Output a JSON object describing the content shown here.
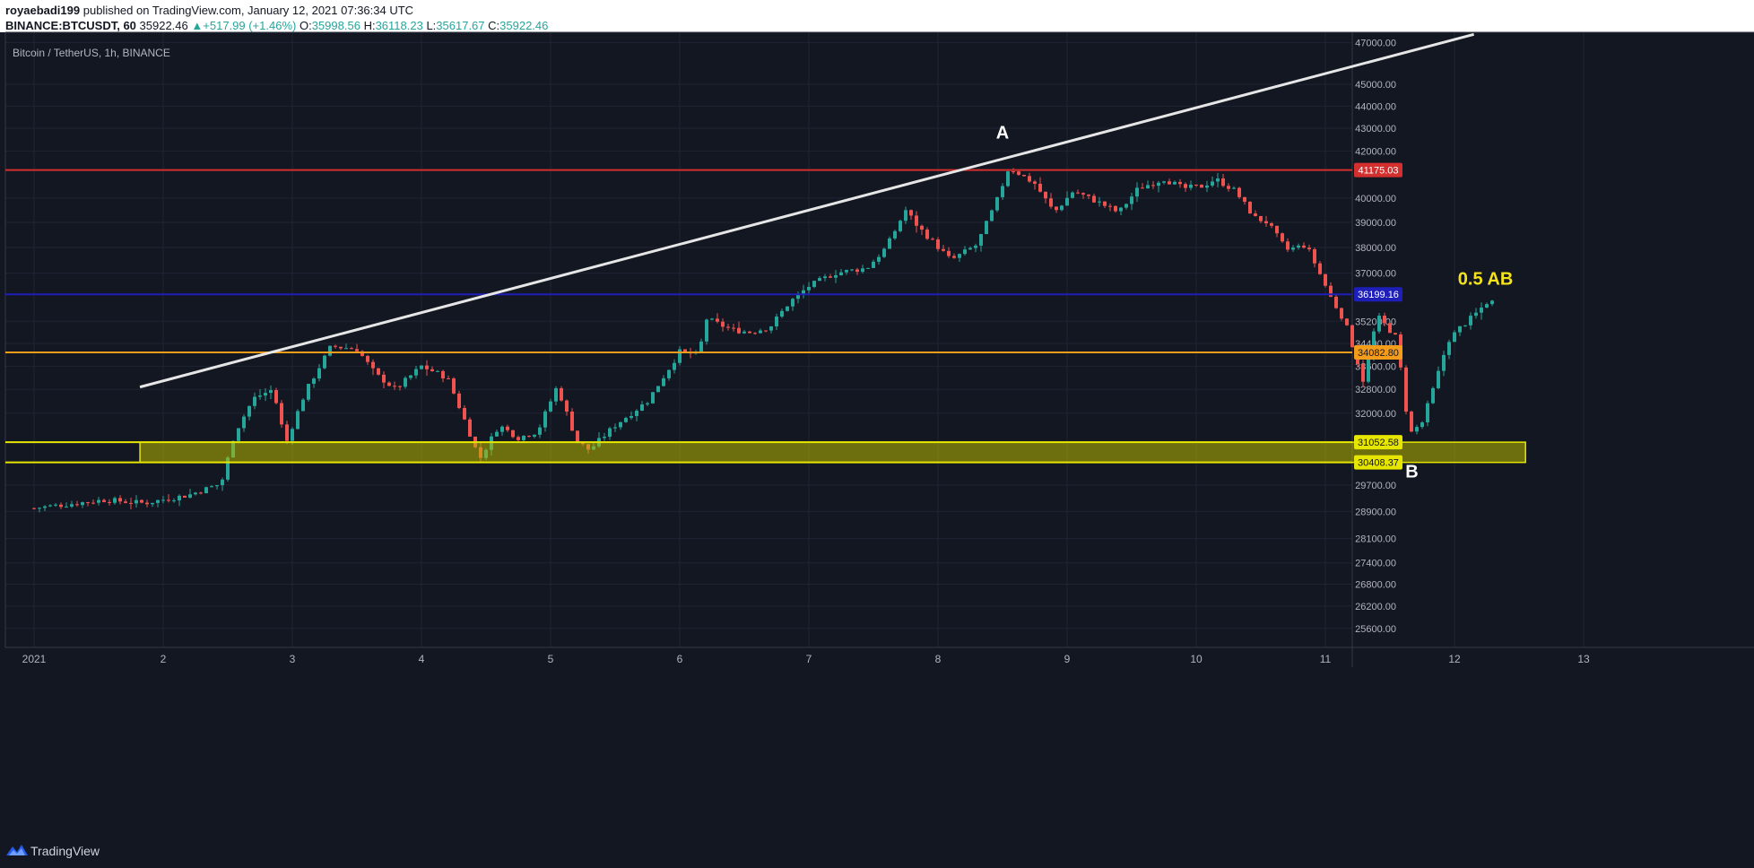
{
  "header": {
    "author": "royaebadi199",
    "published": "published on TradingView.com, January 12, 2021 07:36:34 UTC",
    "symbol": "BINANCE:BTCUSDT, 60",
    "last": "35922.46",
    "change": "+517.99 (+1.46%)",
    "o_label": "O:",
    "o_value": "35998.56",
    "h_label": "H:",
    "h_value": "36118.23",
    "l_label": "L:",
    "l_value": "35617.67",
    "c_label": "C:",
    "c_value": "35922.46"
  },
  "chart_data": {
    "type": "candlestick",
    "title": "Bitcoin / TetherUS, 1h, BINANCE",
    "x_ticks": [
      "2021",
      "2",
      "3",
      "4",
      "5",
      "6",
      "7",
      "8",
      "9",
      "10",
      "11",
      "12",
      "13"
    ],
    "y_ticks": [
      47000,
      45000,
      44000,
      43000,
      42000,
      40000,
      39000,
      38000,
      37000,
      35200,
      34400,
      33600,
      32800,
      32000,
      29700,
      28900,
      28100,
      27400,
      26800,
      26200,
      25600
    ],
    "y_scale": "log",
    "y_range": [
      25100,
      47500
    ],
    "x_range_days": [
      1,
      13.9
    ],
    "horizontal_levels": [
      {
        "price": 41175.03,
        "label": "41175.03",
        "color": "#d32f2f"
      },
      {
        "price": 36199.16,
        "label": "36199.16",
        "color": "#1e1eb8"
      },
      {
        "price": 34082.8,
        "label": "34082.80",
        "color": "#f59c1a"
      },
      {
        "price": 31052.58,
        "label": "31052.58",
        "color": "#e6e600"
      },
      {
        "price": 30408.37,
        "label": "30408.37",
        "color": "#e6e600"
      }
    ],
    "zone": {
      "from_day": 1.82,
      "to_day": 12.55,
      "price_low": 30408.37,
      "price_high": 31052.58,
      "color": "#b8b800"
    },
    "trendline": {
      "start": {
        "day": 1.82,
        "price": 32880
      },
      "end": {
        "day": 12.15,
        "price": 47400
      },
      "color": "#e6e6e6"
    },
    "annotations": [
      {
        "text": "A",
        "day": 8.5,
        "price": 42550,
        "color": "#ffffff"
      },
      {
        "text": "B",
        "day": 11.67,
        "price": 29930,
        "color": "#ffffff"
      },
      {
        "text": "0.5 AB",
        "day": 12.24,
        "price": 36560,
        "color": "#f5e31a"
      }
    ],
    "candle_colors": {
      "up": "#26a69a",
      "down": "#ef5350"
    },
    "anchors": [
      [
        1.0,
        29000
      ],
      [
        1.55,
        29250
      ],
      [
        1.85,
        29150
      ],
      [
        2.2,
        29400
      ],
      [
        2.45,
        29750
      ],
      [
        2.55,
        31300
      ],
      [
        2.7,
        32500
      ],
      [
        2.85,
        32800
      ],
      [
        2.95,
        31000
      ],
      [
        3.1,
        32700
      ],
      [
        3.3,
        34300
      ],
      [
        3.5,
        34200
      ],
      [
        3.65,
        33300
      ],
      [
        3.8,
        32800
      ],
      [
        4.0,
        33600
      ],
      [
        4.2,
        33200
      ],
      [
        4.35,
        31600
      ],
      [
        4.45,
        30500
      ],
      [
        4.6,
        31600
      ],
      [
        4.75,
        31200
      ],
      [
        4.9,
        31400
      ],
      [
        5.05,
        32900
      ],
      [
        5.2,
        31100
      ],
      [
        5.3,
        30800
      ],
      [
        5.5,
        31600
      ],
      [
        5.75,
        32400
      ],
      [
        5.9,
        33400
      ],
      [
        6.0,
        34100
      ],
      [
        6.15,
        34000
      ],
      [
        6.2,
        35300
      ],
      [
        6.4,
        34900
      ],
      [
        6.55,
        34800
      ],
      [
        6.7,
        35000
      ],
      [
        6.85,
        35900
      ],
      [
        7.0,
        36500
      ],
      [
        7.2,
        37000
      ],
      [
        7.45,
        37200
      ],
      [
        7.6,
        38000
      ],
      [
        7.75,
        39500
      ],
      [
        7.85,
        38800
      ],
      [
        8.1,
        37500
      ],
      [
        8.3,
        38100
      ],
      [
        8.45,
        39800
      ],
      [
        8.55,
        41300
      ],
      [
        8.75,
        40600
      ],
      [
        8.9,
        39400
      ],
      [
        9.05,
        40300
      ],
      [
        9.25,
        39800
      ],
      [
        9.4,
        39400
      ],
      [
        9.55,
        40400
      ],
      [
        9.75,
        40800
      ],
      [
        9.9,
        40400
      ],
      [
        10.05,
        40500
      ],
      [
        10.15,
        40800
      ],
      [
        10.3,
        40300
      ],
      [
        10.45,
        39200
      ],
      [
        10.55,
        39000
      ],
      [
        10.7,
        37900
      ],
      [
        10.85,
        38100
      ],
      [
        11.05,
        36000
      ],
      [
        11.15,
        35200
      ],
      [
        11.3,
        33000
      ],
      [
        11.4,
        35400
      ],
      [
        11.55,
        34600
      ],
      [
        11.65,
        31300
      ],
      [
        11.75,
        31700
      ],
      [
        11.85,
        33000
      ],
      [
        11.95,
        34500
      ],
      [
        12.05,
        35000
      ],
      [
        12.15,
        35400
      ],
      [
        12.25,
        35900
      ],
      [
        12.3,
        35922
      ]
    ]
  },
  "footer": {
    "brand": "TradingView"
  }
}
